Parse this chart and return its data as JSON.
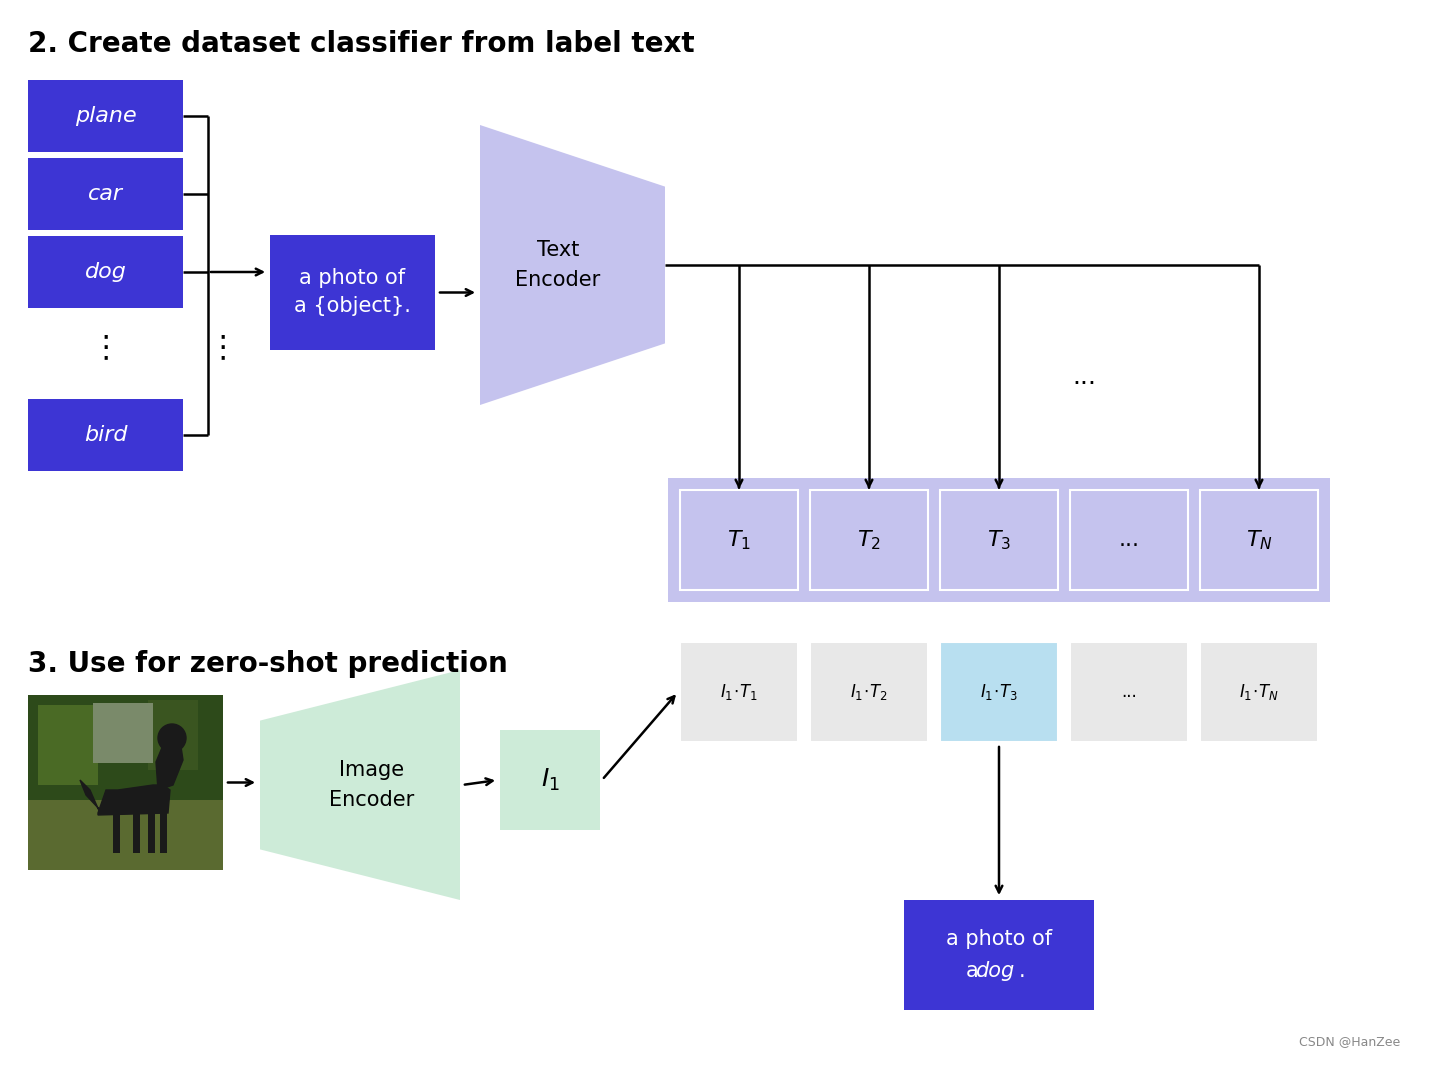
{
  "title1": "2. Create dataset classifier from label text",
  "title2": "3. Use for zero-shot prediction",
  "bg_color": "#ffffff",
  "blue_box_color": "#3d35d4",
  "blue_box_text_color": "#ffffff",
  "light_purple_color": "#c5c3ee",
  "light_purple_strip": "#c5c3ee",
  "light_green_color": "#cdebd8",
  "light_blue_color": "#b8dff0",
  "light_gray_color": "#e8e8e8",
  "label_boxes": [
    "plane",
    "car",
    "dog",
    "bird"
  ],
  "template_text_line1": "a photo of",
  "template_text_line2": "a {object}.",
  "text_encoder_label": [
    "Text",
    "Encoder"
  ],
  "image_encoder_label": [
    "Image",
    "Encoder"
  ],
  "T_labels": [
    "$T_1$",
    "$T_2$",
    "$T_3$",
    "...",
    "$T_N$"
  ],
  "I1_label": "$I_1$",
  "score_labels": [
    "$I_1\\!\\cdot\\!T_1$",
    "$I_1\\!\\cdot\\!T_2$",
    "$I_1\\!\\cdot\\!T_3$",
    "...",
    "$I_1\\!\\cdot\\!T_N$"
  ],
  "result_text_line1": "a photo of",
  "result_text_line2": "a ",
  "result_dog": "dog",
  "result_end": ".",
  "footer": "CSDN @HanZee"
}
